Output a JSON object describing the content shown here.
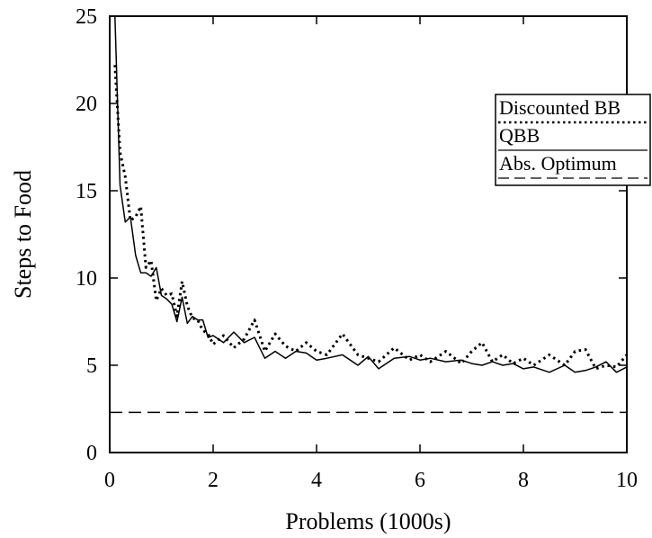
{
  "chart_data": {
    "type": "line",
    "xlabel": "Problems (1000s)",
    "ylabel": "Steps to Food",
    "xlim": [
      0,
      10
    ],
    "ylim": [
      0,
      25
    ],
    "xticks": [
      0,
      2,
      4,
      6,
      8,
      10
    ],
    "yticks": [
      0,
      5,
      10,
      15,
      20,
      25
    ],
    "grid": false,
    "legend_position": "right",
    "series": [
      {
        "name": "Discounted BB",
        "style": "dotted",
        "color": "#000000",
        "x": [
          0.1,
          0.2,
          0.3,
          0.4,
          0.5,
          0.6,
          0.7,
          0.8,
          0.9,
          1.0,
          1.1,
          1.2,
          1.3,
          1.4,
          1.5,
          1.6,
          1.7,
          1.8,
          1.9,
          2.0,
          2.2,
          2.4,
          2.6,
          2.8,
          3.0,
          3.2,
          3.4,
          3.6,
          3.8,
          4.0,
          4.2,
          4.5,
          4.8,
          5.0,
          5.2,
          5.5,
          5.8,
          6.0,
          6.2,
          6.5,
          6.8,
          7.0,
          7.2,
          7.4,
          7.6,
          7.8,
          8.0,
          8.2,
          8.5,
          8.8,
          9.0,
          9.2,
          9.4,
          9.6,
          9.8,
          10.0
        ],
        "y": [
          22.2,
          17.2,
          15.8,
          13.3,
          13.5,
          14.1,
          10.6,
          11.0,
          8.7,
          9.4,
          9.0,
          9.1,
          7.8,
          9.8,
          8.4,
          7.7,
          7.6,
          7.0,
          6.8,
          6.2,
          6.7,
          6.0,
          6.5,
          7.6,
          5.8,
          6.8,
          6.1,
          5.8,
          6.3,
          5.8,
          5.6,
          6.8,
          5.6,
          5.4,
          5.2,
          6.0,
          5.3,
          5.6,
          5.2,
          5.8,
          5.1,
          5.8,
          6.3,
          5.2,
          5.6,
          5.1,
          5.4,
          5.0,
          5.6,
          5.0,
          5.8,
          5.9,
          4.8,
          5.0,
          4.9,
          5.6
        ]
      },
      {
        "name": "QBB",
        "style": "solid",
        "color": "#000000",
        "x": [
          0.1,
          0.2,
          0.3,
          0.4,
          0.5,
          0.6,
          0.7,
          0.8,
          0.9,
          1.0,
          1.1,
          1.2,
          1.3,
          1.4,
          1.5,
          1.6,
          1.7,
          1.8,
          1.9,
          2.0,
          2.2,
          2.4,
          2.6,
          2.8,
          3.0,
          3.2,
          3.4,
          3.6,
          3.8,
          4.0,
          4.2,
          4.5,
          4.8,
          5.0,
          5.2,
          5.5,
          5.8,
          6.0,
          6.2,
          6.5,
          6.8,
          7.0,
          7.2,
          7.4,
          7.6,
          7.8,
          8.0,
          8.2,
          8.5,
          8.8,
          9.0,
          9.2,
          9.4,
          9.6,
          9.8,
          10.0
        ],
        "y": [
          25.0,
          15.3,
          13.2,
          13.5,
          11.3,
          10.3,
          10.3,
          10.1,
          10.6,
          9.0,
          8.8,
          8.5,
          7.5,
          8.9,
          7.4,
          7.8,
          7.6,
          7.6,
          6.6,
          6.7,
          6.3,
          6.9,
          6.3,
          6.6,
          5.4,
          5.8,
          5.4,
          5.8,
          5.7,
          5.3,
          5.4,
          5.6,
          5.0,
          5.5,
          4.8,
          5.4,
          5.5,
          5.3,
          5.4,
          5.2,
          5.3,
          5.1,
          5.0,
          5.2,
          5.0,
          5.1,
          4.8,
          4.9,
          4.6,
          5.0,
          4.6,
          4.7,
          4.9,
          5.2,
          4.6,
          4.9
        ]
      },
      {
        "name": "Abs. Optimum",
        "style": "dashed",
        "color": "#000000",
        "x": [
          0,
          10
        ],
        "y": [
          2.3,
          2.3
        ]
      }
    ]
  }
}
